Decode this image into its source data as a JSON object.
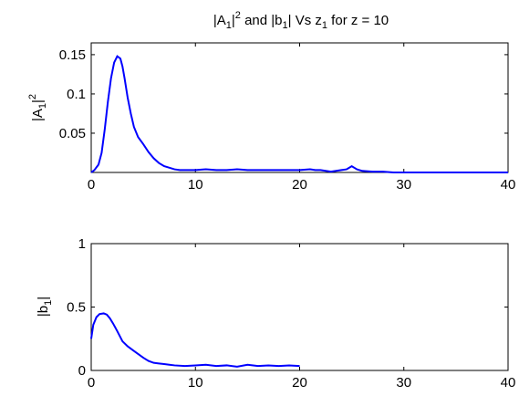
{
  "figure": {
    "title": {
      "pre": "|A",
      "sub": "1",
      "mid": "|",
      "sup": "2",
      "post1": " and |b",
      "sub2": "1",
      "post2": "| Vs z",
      "sub3": "1",
      "post3": " for z = 10"
    }
  },
  "chart_data": [
    {
      "type": "line",
      "ylabel": {
        "pre": "|A",
        "sub": "1",
        "mid": "|",
        "sup": "2"
      },
      "xlabel": "",
      "xlim": [
        0,
        40
      ],
      "ylim": [
        0,
        0.165
      ],
      "xticks": [
        "0",
        "10",
        "20",
        "30",
        "40"
      ],
      "yticks": [
        "0.05",
        "0.1",
        "0.15"
      ],
      "ytick_values": [
        0.05,
        0.1,
        0.15
      ],
      "series": [
        {
          "color": "#0000ff",
          "x": [
            0,
            0.3,
            0.7,
            1.0,
            1.3,
            1.6,
            1.9,
            2.2,
            2.5,
            2.8,
            3.0,
            3.2,
            3.5,
            3.8,
            4.1,
            4.5,
            5.0,
            5.5,
            6.0,
            6.5,
            7.0,
            7.5,
            8.0,
            8.5,
            9,
            10,
            11,
            12,
            13,
            14,
            15,
            16,
            17,
            18,
            19,
            20,
            21,
            21.5,
            22,
            23,
            24,
            24.5,
            25,
            25.5,
            26,
            27,
            28,
            29,
            30,
            32,
            35,
            38,
            40
          ],
          "y": [
            0,
            0.003,
            0.01,
            0.025,
            0.055,
            0.09,
            0.12,
            0.14,
            0.148,
            0.145,
            0.135,
            0.12,
            0.095,
            0.075,
            0.058,
            0.045,
            0.036,
            0.026,
            0.018,
            0.012,
            0.008,
            0.006,
            0.004,
            0.003,
            0.003,
            0.003,
            0.004,
            0.003,
            0.003,
            0.004,
            0.003,
            0.003,
            0.003,
            0.003,
            0.003,
            0.003,
            0.004,
            0.003,
            0.003,
            0.001,
            0.003,
            0.004,
            0.008,
            0.004,
            0.002,
            0.001,
            0.001,
            0,
            0,
            0,
            0,
            0,
            0
          ]
        }
      ]
    },
    {
      "type": "line",
      "ylabel": {
        "pre": "|b",
        "sub": "1",
        "post": "|"
      },
      "xlabel": "",
      "xlim": [
        0,
        40
      ],
      "ylim": [
        0,
        1
      ],
      "xticks": [
        "0",
        "10",
        "20",
        "30",
        "40"
      ],
      "yticks": [
        "0",
        "0.5",
        "1"
      ],
      "ytick_values": [
        0,
        0.5,
        1
      ],
      "series": [
        {
          "color": "#0000ff",
          "x": [
            0,
            0.2,
            0.5,
            0.8,
            1.2,
            1.5,
            1.8,
            2.1,
            2.5,
            3.0,
            3.5,
            4.0,
            4.5,
            5.0,
            5.5,
            6.0,
            6.5,
            7.0,
            7.5,
            8.0,
            9,
            10,
            11,
            12,
            13,
            14,
            15,
            16,
            17,
            18,
            19,
            20
          ],
          "y": [
            0.25,
            0.36,
            0.42,
            0.445,
            0.45,
            0.44,
            0.41,
            0.37,
            0.31,
            0.23,
            0.19,
            0.16,
            0.13,
            0.1,
            0.075,
            0.06,
            0.055,
            0.05,
            0.045,
            0.04,
            0.035,
            0.04,
            0.045,
            0.035,
            0.04,
            0.03,
            0.045,
            0.035,
            0.04,
            0.035,
            0.04,
            0.035
          ]
        }
      ]
    }
  ]
}
